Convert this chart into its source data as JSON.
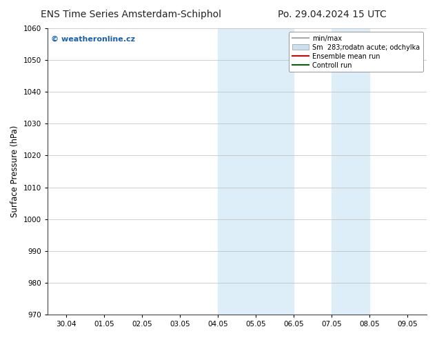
{
  "title_left": "ENS Time Series Amsterdam-Schiphol",
  "title_right": "Po. 29.04.2024 15 UTC",
  "ylabel": "Surface Pressure (hPa)",
  "ylim": [
    970,
    1060
  ],
  "yticks": [
    970,
    980,
    990,
    1000,
    1010,
    1020,
    1030,
    1040,
    1050,
    1060
  ],
  "xlabel_ticks": [
    "30.04",
    "01.05",
    "02.05",
    "03.05",
    "04.05",
    "05.05",
    "06.05",
    "07.05",
    "08.05",
    "09.05"
  ],
  "x_tick_positions": [
    0,
    1,
    2,
    3,
    4,
    5,
    6,
    7,
    8,
    9
  ],
  "shaded_regions": [
    {
      "xmin": 4.0,
      "xmax": 6.0
    },
    {
      "xmin": 7.0,
      "xmax": 8.0
    }
  ],
  "shaded_color": "#ddeef8",
  "watermark_text": "© weatheronline.cz",
  "watermark_color": "#1a5fa8",
  "legend_entries": [
    {
      "label": "min/max",
      "color": "#aaaaaa",
      "style": "line"
    },
    {
      "label": "Sm  283;rodatn acute; odchylka",
      "color": "#cce0f0",
      "style": "rect"
    },
    {
      "label": "Ensemble mean run",
      "color": "#dd0000",
      "style": "line"
    },
    {
      "label": "Controll run",
      "color": "#006600",
      "style": "line"
    }
  ],
  "bg_color": "#ffffff",
  "grid_color": "#bbbbbb",
  "title_fontsize": 10,
  "tick_fontsize": 7.5,
  "ylabel_fontsize": 8.5,
  "xlim": [
    -0.5,
    9.5
  ]
}
